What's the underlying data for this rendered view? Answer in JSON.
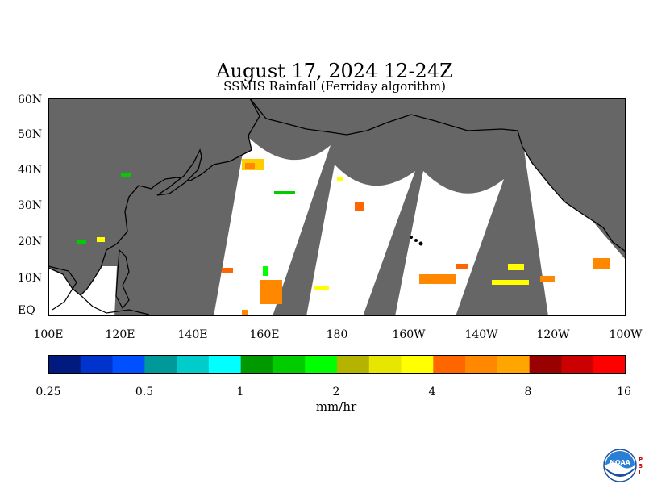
{
  "title": "August 17, 2024 12-24Z",
  "subtitle": "SSMIS Rainfall (Ferriday algorithm)",
  "lat_labels": [
    "60N",
    "50N",
    "40N",
    "30N",
    "20N",
    "10N",
    "EQ"
  ],
  "lon_labels": [
    "100E",
    "120E",
    "140E",
    "160E",
    "180",
    "160W",
    "140W",
    "120W",
    "100W"
  ],
  "colorbar": {
    "colors": [
      "#001a80",
      "#0033cc",
      "#0050ff",
      "#009999",
      "#00cccc",
      "#00ffff",
      "#009900",
      "#00cc00",
      "#00ff00",
      "#b3b300",
      "#e6e600",
      "#ffff00",
      "#ff6600",
      "#ff8800",
      "#ffa500",
      "#990000",
      "#cc0000",
      "#ff0000"
    ],
    "labels": [
      "0.25",
      "0.5",
      "1",
      "2",
      "4",
      "8",
      "16"
    ],
    "units": "mm/hr"
  },
  "map_colors": {
    "no_data": "#666666",
    "no_rain": "#ffffff",
    "coast": "#000000"
  },
  "logo": {
    "text": "NOAA",
    "side_text": "PSL"
  }
}
